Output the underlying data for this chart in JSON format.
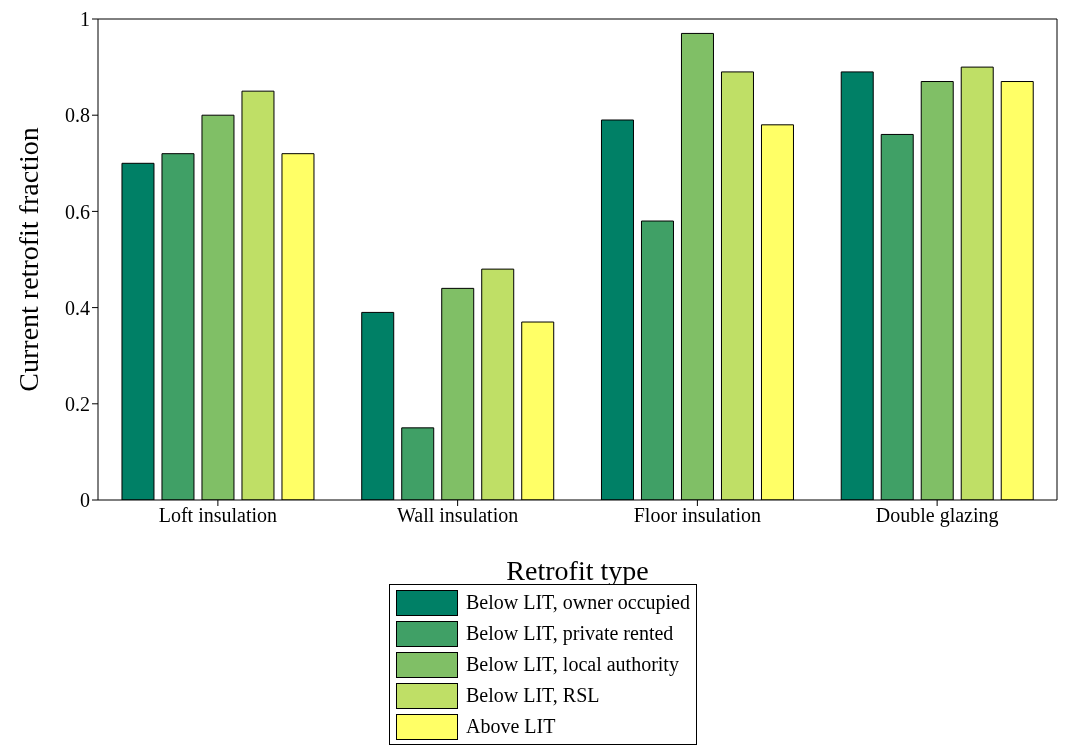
{
  "chart_data": {
    "type": "bar",
    "xlabel": "Retrofit type",
    "ylabel": "Current retrofit fraction",
    "categories": [
      "Loft insulation",
      "Wall insulation",
      "Floor insulation",
      "Double glazing"
    ],
    "series": [
      {
        "name": "Below LIT, owner occupied",
        "color": "#008066",
        "values": [
          0.7,
          0.39,
          0.79,
          0.89
        ]
      },
      {
        "name": "Below LIT, private rented",
        "color": "#40a066",
        "values": [
          0.72,
          0.15,
          0.58,
          0.76
        ]
      },
      {
        "name": "Below LIT, local authority",
        "color": "#80bf66",
        "values": [
          0.8,
          0.44,
          0.97,
          0.87
        ]
      },
      {
        "name": "Below LIT, RSL",
        "color": "#bfdf66",
        "values": [
          0.85,
          0.48,
          0.89,
          0.9
        ]
      },
      {
        "name": "Above LIT",
        "color": "#ffff66",
        "values": [
          0.72,
          0.37,
          0.78,
          0.87
        ]
      }
    ],
    "ylim": [
      0,
      1
    ],
    "yticks": [
      0,
      0.2,
      0.4,
      0.6,
      0.8,
      1
    ],
    "grid": false,
    "legend": "bottom"
  }
}
